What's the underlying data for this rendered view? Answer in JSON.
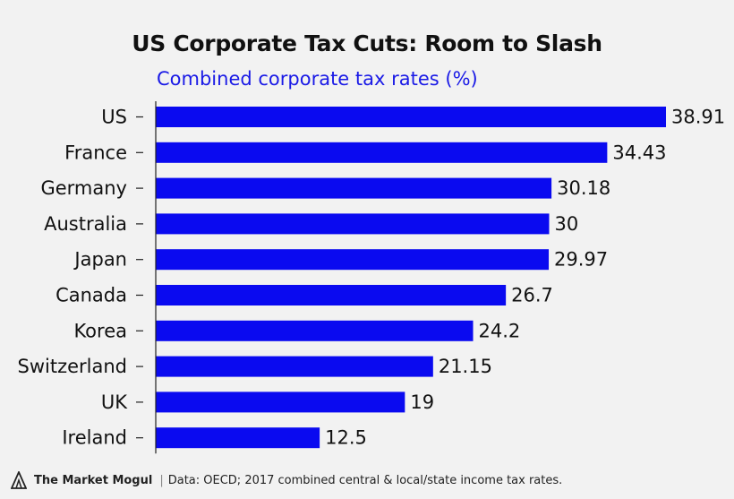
{
  "title": "US Corporate Tax Cuts: Room to Slash",
  "subtitle": "Combined corporate tax rates (%)",
  "footer": {
    "brand": "The Market Mogul",
    "separator": "|",
    "source": "Data: OECD; 2017 combined central & local/state income tax rates."
  },
  "colors": {
    "bar": "#0a0af0",
    "axis": "#222222",
    "text": "#111111",
    "background": "#f2f2f2"
  },
  "chart_data": {
    "type": "bar",
    "orientation": "horizontal",
    "title": "US Corporate Tax Cuts: Room to Slash",
    "subtitle": "Combined corporate tax rates (%)",
    "categories": [
      "US",
      "France",
      "Germany",
      "Australia",
      "Japan",
      "Canada",
      "Korea",
      "Switzerland",
      "UK",
      "Ireland"
    ],
    "values": [
      38.91,
      34.43,
      30.18,
      30,
      29.97,
      26.7,
      24.2,
      21.15,
      19,
      12.5
    ],
    "labels": [
      "38.91",
      "34.43",
      "30.18",
      "30",
      "29.97",
      "26.7",
      "24.2",
      "21.15",
      "19",
      "12.5"
    ],
    "xlim": [
      0,
      38.91
    ],
    "grid": false,
    "data_labels": true
  }
}
